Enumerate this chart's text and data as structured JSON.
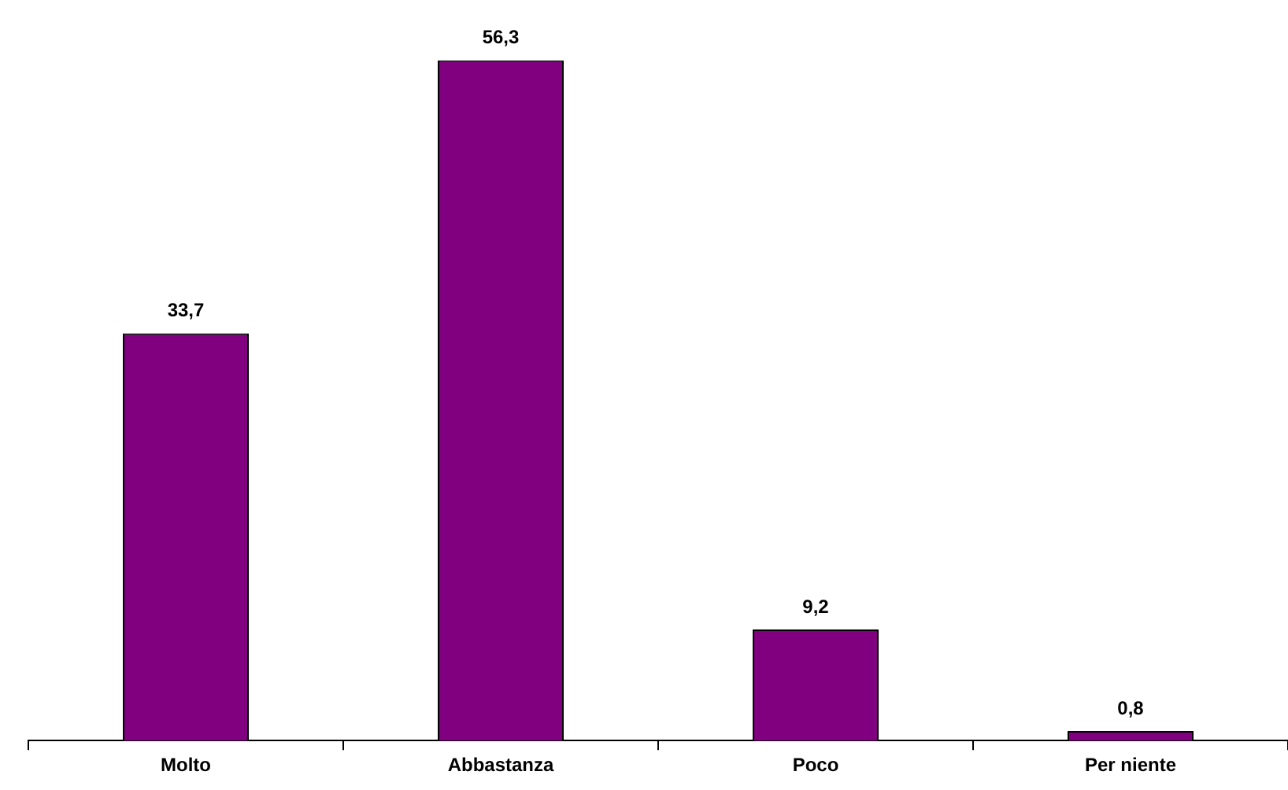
{
  "chart_data": {
    "type": "bar",
    "categories": [
      "Molto",
      "Abbastanza",
      "Poco",
      "Per niente"
    ],
    "values": [
      33.7,
      56.3,
      9.2,
      0.8
    ],
    "color": "#800080",
    "relative": false,
    "data_labels": true,
    "value_labels": [
      "33,7",
      "56,3",
      "9,2",
      "0,8"
    ],
    "grid": false,
    "legend": false
  }
}
